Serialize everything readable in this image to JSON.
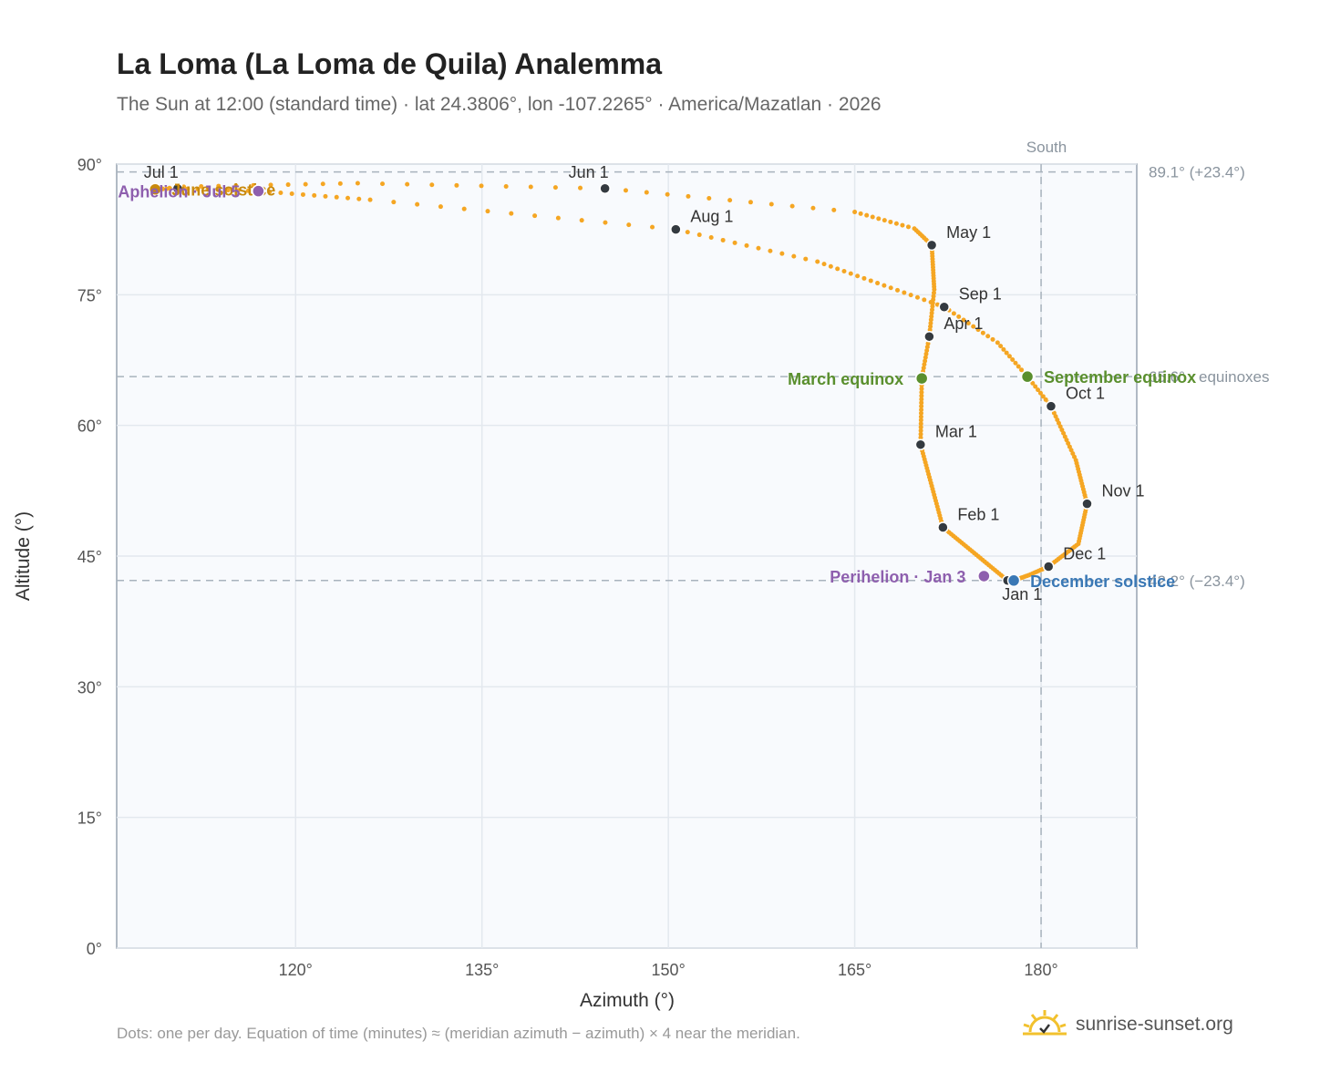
{
  "header": {
    "title": "La Loma (La Loma de Quila) Analemma",
    "subtitle": "The Sun at 12:00 (standard time) · lat 24.3806°, lon -107.2265° · America/Mazatlan · 2026"
  },
  "footer": {
    "note": "Dots: one per day. Equation of time (minutes) ≈ (meridian azimuth − azimuth) × 4 near the meridian.",
    "brand": "sunrise-sunset.org"
  },
  "colors": {
    "curve": "#f5a623",
    "month_dot": "#343a40",
    "equinox": "#5a8f2e",
    "june_solstice": "#c98a0e",
    "december_solstice": "#3a78b5",
    "perihelion_aphelion": "#8e5fae",
    "reference_line": "#a9b3bd",
    "axis_text": "#555555",
    "plot_background": "#f8fafd"
  },
  "chart_data": {
    "type": "scatter",
    "title": "La Loma (La Loma de Quila) Analemma",
    "xlabel": "Azimuth (°)",
    "ylabel": "Altitude (°)",
    "xlim": [
      105.6,
      187.7
    ],
    "ylim": [
      0,
      90
    ],
    "grid": true,
    "x_ticks": [
      120,
      135,
      150,
      165,
      180
    ],
    "x_tick_labels": [
      "120°",
      "135°",
      "150°",
      "165°",
      "180°"
    ],
    "y_ticks": [
      0,
      15,
      30,
      45,
      60,
      75,
      90
    ],
    "y_tick_labels": [
      "0°",
      "15°",
      "30°",
      "45°",
      "60°",
      "75°",
      "90°"
    ],
    "south_line": {
      "azimuth": 180,
      "label": "South"
    },
    "reference_lines": [
      {
        "altitude": 89.1,
        "label": "89.1° (+23.4°)"
      },
      {
        "altitude": 65.6,
        "label": "65.6° · equinoxes"
      },
      {
        "altitude": 42.2,
        "label": "42.2° (−23.4°)"
      }
    ],
    "analemma_path": [
      {
        "day": 1,
        "az": 177.3,
        "alt": 42.2
      },
      {
        "day": 32,
        "az": 172.1,
        "alt": 48.3
      },
      {
        "day": 60,
        "az": 170.3,
        "alt": 57.8
      },
      {
        "day": 79,
        "az": 170.4,
        "alt": 65.4
      },
      {
        "day": 91,
        "az": 171.0,
        "alt": 70.2
      },
      {
        "day": 105,
        "az": 171.4,
        "alt": 75.6
      },
      {
        "day": 121,
        "az": 171.2,
        "alt": 80.7
      },
      {
        "day": 130,
        "az": 169.8,
        "alt": 82.6
      },
      {
        "day": 140,
        "az": 165.0,
        "alt": 84.5
      },
      {
        "day": 152,
        "az": 144.9,
        "alt": 87.2
      },
      {
        "day": 162,
        "az": 125.0,
        "alt": 87.8
      },
      {
        "day": 172,
        "az": 111.0,
        "alt": 87.4
      },
      {
        "day": 176,
        "az": 108.7,
        "alt": 87.1
      },
      {
        "day": 182,
        "az": 110.5,
        "alt": 87.2
      },
      {
        "day": 190,
        "az": 117.0,
        "alt": 86.9
      },
      {
        "day": 200,
        "az": 126.0,
        "alt": 85.9
      },
      {
        "day": 213,
        "az": 150.6,
        "alt": 82.5
      },
      {
        "day": 225,
        "az": 162.0,
        "alt": 78.8
      },
      {
        "day": 244,
        "az": 172.2,
        "alt": 73.6
      },
      {
        "day": 255,
        "az": 176.5,
        "alt": 69.5
      },
      {
        "day": 265,
        "az": 178.9,
        "alt": 65.6
      },
      {
        "day": 274,
        "az": 180.8,
        "alt": 62.2
      },
      {
        "day": 290,
        "az": 182.8,
        "alt": 56.0
      },
      {
        "day": 305,
        "az": 183.7,
        "alt": 51.0
      },
      {
        "day": 320,
        "az": 183.0,
        "alt": 46.4
      },
      {
        "day": 335,
        "az": 180.6,
        "alt": 43.8
      },
      {
        "day": 345,
        "az": 179.0,
        "alt": 42.8
      },
      {
        "day": 355,
        "az": 177.8,
        "alt": 42.2
      },
      {
        "day": 365,
        "az": 177.3,
        "alt": 42.2
      }
    ],
    "month_markers": [
      {
        "label": "Jan 1",
        "az": 177.3,
        "alt": 42.2,
        "pos": "below"
      },
      {
        "label": "Feb 1",
        "az": 172.1,
        "alt": 48.3,
        "pos": "right"
      },
      {
        "label": "Mar 1",
        "az": 170.3,
        "alt": 57.8,
        "pos": "right"
      },
      {
        "label": "Apr 1",
        "az": 171.0,
        "alt": 70.2,
        "pos": "right"
      },
      {
        "label": "May 1",
        "az": 171.2,
        "alt": 80.7,
        "pos": "right"
      },
      {
        "label": "Jun 1",
        "az": 144.9,
        "alt": 87.2,
        "pos": "above-left"
      },
      {
        "label": "Jul 1",
        "az": 110.5,
        "alt": 87.2,
        "pos": "above-left"
      },
      {
        "label": "Aug 1",
        "az": 150.6,
        "alt": 82.5,
        "pos": "right"
      },
      {
        "label": "Sep 1",
        "az": 172.2,
        "alt": 73.6,
        "pos": "right"
      },
      {
        "label": "Oct 1",
        "az": 180.8,
        "alt": 62.2,
        "pos": "right"
      },
      {
        "label": "Nov 1",
        "az": 183.7,
        "alt": 51.0,
        "pos": "right"
      },
      {
        "label": "Dec 1",
        "az": 180.6,
        "alt": 43.8,
        "pos": "right"
      }
    ],
    "events": [
      {
        "label": "March equinox",
        "az": 170.4,
        "alt": 65.4,
        "color_key": "equinox",
        "pos": "left"
      },
      {
        "label": "September equinox",
        "az": 178.9,
        "alt": 65.6,
        "color_key": "equinox",
        "pos": "right"
      },
      {
        "label": "June solstice",
        "az": 108.7,
        "alt": 87.1,
        "color_key": "june_solstice",
        "pos": "right"
      },
      {
        "label": "December solstice",
        "az": 177.8,
        "alt": 42.2,
        "color_key": "december_solstice",
        "pos": "right"
      },
      {
        "label": "Perihelion · Jan 3",
        "az": 175.4,
        "alt": 42.7,
        "color_key": "perihelion_aphelion",
        "pos": "left"
      },
      {
        "label": "Aphelion · Jul 5",
        "az": 117.0,
        "alt": 86.9,
        "color_key": "perihelion_aphelion",
        "pos": "left"
      }
    ]
  }
}
